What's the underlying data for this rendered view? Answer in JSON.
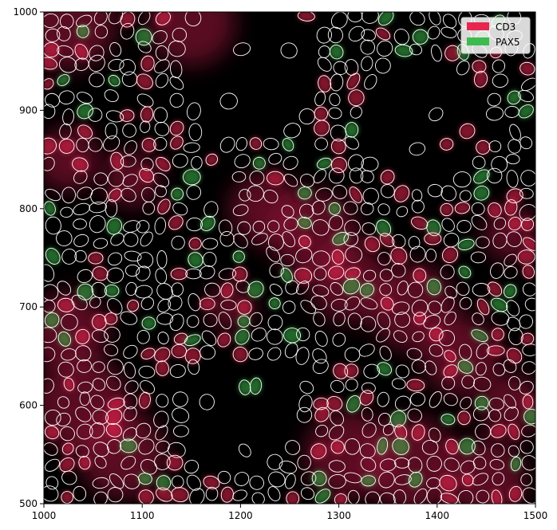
{
  "chart_data": {
    "type": "image",
    "title": "",
    "xlabel": "",
    "ylabel": "",
    "xlim": [
      1000,
      1500
    ],
    "ylim": [
      500,
      1000
    ],
    "x_ticks": [
      1000,
      1100,
      1200,
      1300,
      1400,
      1500
    ],
    "y_ticks": [
      500,
      600,
      700,
      800,
      900,
      1000
    ],
    "legend_placement": "top-right",
    "legend": [
      {
        "name": "CD3",
        "color": "#e8274f"
      },
      {
        "name": "PAX5",
        "color": "#3dbb4e"
      }
    ],
    "background_color": "#000000",
    "cell_outline_color": "#ffffff"
  }
}
